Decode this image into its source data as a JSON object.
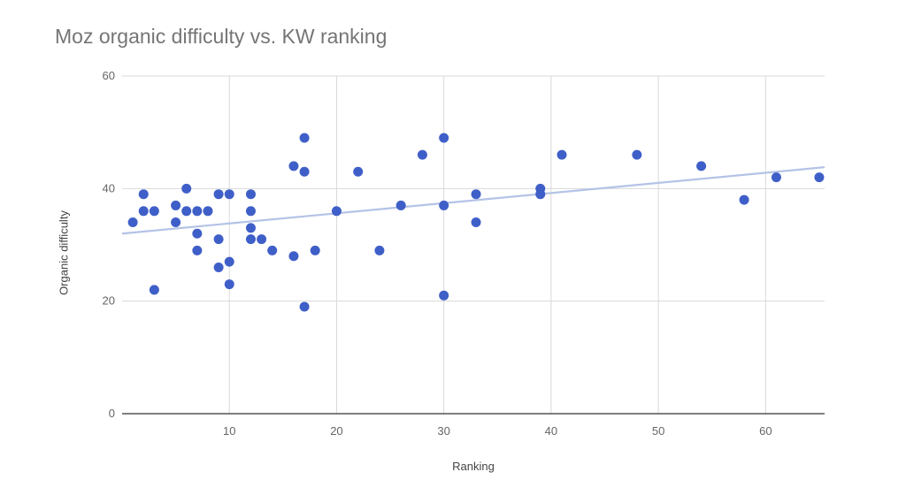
{
  "chart_data": {
    "type": "scatter",
    "title": "Moz organic difficulty vs. KW ranking",
    "xlabel": "Ranking",
    "ylabel": "Organic difficulty",
    "xlim": [
      0,
      65.5
    ],
    "ylim": [
      0,
      60
    ],
    "x_ticks": [
      10,
      20,
      30,
      40,
      50,
      60
    ],
    "y_ticks": [
      0,
      20,
      40,
      60
    ],
    "grid": true,
    "legend": "none",
    "point_color": "#3f5fc8",
    "trendline_color": "#b4c3e6",
    "trendline": {
      "x": [
        0,
        65.5
      ],
      "y": [
        32.0,
        43.8
      ]
    },
    "points": [
      {
        "x": 1,
        "y": 34
      },
      {
        "x": 2,
        "y": 39
      },
      {
        "x": 2,
        "y": 36
      },
      {
        "x": 3,
        "y": 36
      },
      {
        "x": 3,
        "y": 22
      },
      {
        "x": 5,
        "y": 37
      },
      {
        "x": 5,
        "y": 34
      },
      {
        "x": 6,
        "y": 40
      },
      {
        "x": 6,
        "y": 36
      },
      {
        "x": 7,
        "y": 36
      },
      {
        "x": 7,
        "y": 32
      },
      {
        "x": 7,
        "y": 29
      },
      {
        "x": 8,
        "y": 36
      },
      {
        "x": 9,
        "y": 39
      },
      {
        "x": 9,
        "y": 31
      },
      {
        "x": 9,
        "y": 26
      },
      {
        "x": 10,
        "y": 39
      },
      {
        "x": 10,
        "y": 27
      },
      {
        "x": 10,
        "y": 23
      },
      {
        "x": 12,
        "y": 39
      },
      {
        "x": 12,
        "y": 36
      },
      {
        "x": 12,
        "y": 33
      },
      {
        "x": 12,
        "y": 31
      },
      {
        "x": 13,
        "y": 31
      },
      {
        "x": 14,
        "y": 29
      },
      {
        "x": 16,
        "y": 44
      },
      {
        "x": 16,
        "y": 28
      },
      {
        "x": 17,
        "y": 49
      },
      {
        "x": 17,
        "y": 43
      },
      {
        "x": 17,
        "y": 19
      },
      {
        "x": 18,
        "y": 29
      },
      {
        "x": 20,
        "y": 36
      },
      {
        "x": 22,
        "y": 43
      },
      {
        "x": 24,
        "y": 29
      },
      {
        "x": 26,
        "y": 37
      },
      {
        "x": 28,
        "y": 46
      },
      {
        "x": 30,
        "y": 49
      },
      {
        "x": 30,
        "y": 37
      },
      {
        "x": 30,
        "y": 21
      },
      {
        "x": 33,
        "y": 39
      },
      {
        "x": 33,
        "y": 34
      },
      {
        "x": 39,
        "y": 40
      },
      {
        "x": 39,
        "y": 39
      },
      {
        "x": 41,
        "y": 46
      },
      {
        "x": 48,
        "y": 46
      },
      {
        "x": 54,
        "y": 44
      },
      {
        "x": 58,
        "y": 38
      },
      {
        "x": 61,
        "y": 42
      },
      {
        "x": 65,
        "y": 42
      }
    ]
  }
}
